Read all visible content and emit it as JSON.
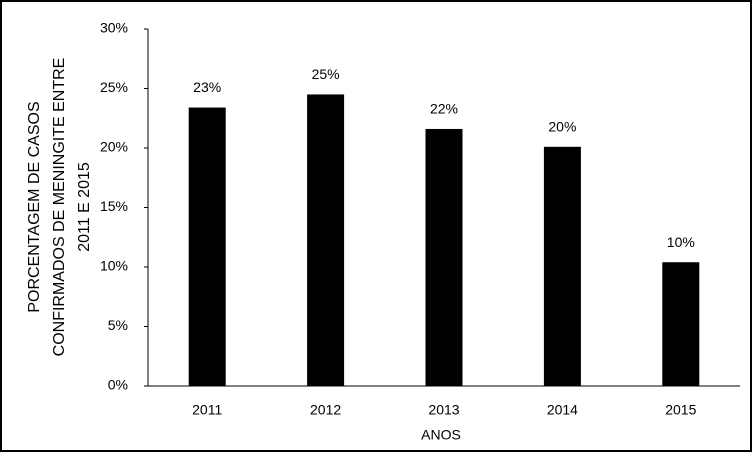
{
  "chart_data": {
    "type": "bar",
    "y_label_lines": [
      "PORCENTAGEM DE CASOS",
      "CONFIRMADOS DE MENINGITE ENTRE",
      "2011 E 2015"
    ],
    "x_label": "ANOS",
    "categories": [
      "2011",
      "2012",
      "2013",
      "2014",
      "2015"
    ],
    "values": [
      23.4,
      24.5,
      21.6,
      20.1,
      10.4
    ],
    "value_labels": [
      "23%",
      "25%",
      "22%",
      "20%",
      "10%"
    ],
    "color": "#000000",
    "ylim": [
      0,
      30
    ],
    "yticks": [
      {
        "value": 0,
        "label": "0%"
      },
      {
        "value": 5,
        "label": "5%"
      },
      {
        "value": 10,
        "label": "10%"
      },
      {
        "value": 15,
        "label": "15%"
      },
      {
        "value": 20,
        "label": "20%"
      },
      {
        "value": 25,
        "label": "25%"
      },
      {
        "value": 30,
        "label": "30%"
      }
    ],
    "grid": false
  }
}
